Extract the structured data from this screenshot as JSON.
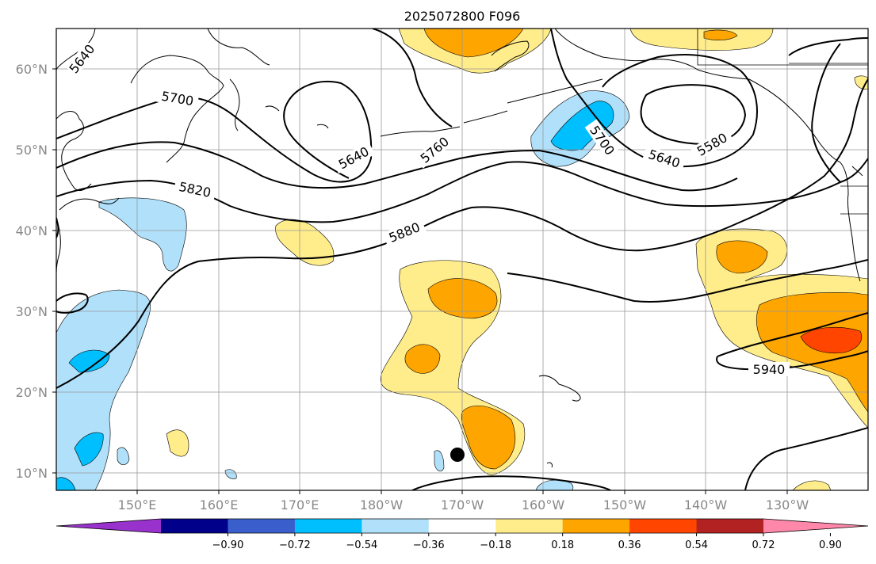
{
  "title": "2025072800 F096",
  "lat_labels": [
    "60°N",
    "50°N",
    "40°N",
    "30°N",
    "20°N",
    "10°N"
  ],
  "lon_labels": [
    "150°E",
    "160°E",
    "170°E",
    "180°W",
    "170°W",
    "160°W",
    "150°W",
    "140°W",
    "130°W"
  ],
  "contour_labels": [
    "5640",
    "5700",
    "5820",
    "5640",
    "5760",
    "5880",
    "5700",
    "5640",
    "5580",
    "5940"
  ],
  "colorbar": {
    "ticks": [
      "−0.90",
      "−0.72",
      "−0.54",
      "−0.36",
      "−0.18",
      "0.18",
      "0.36",
      "0.54",
      "0.72",
      "0.90"
    ],
    "colors": [
      "#9932cc",
      "#00008b",
      "#3a5fcd",
      "#00bfff",
      "#b0e0fa",
      "#ffffff",
      "#ffec8b",
      "#ffa500",
      "#ff4500",
      "#b22222",
      "#ff88aa"
    ]
  }
}
